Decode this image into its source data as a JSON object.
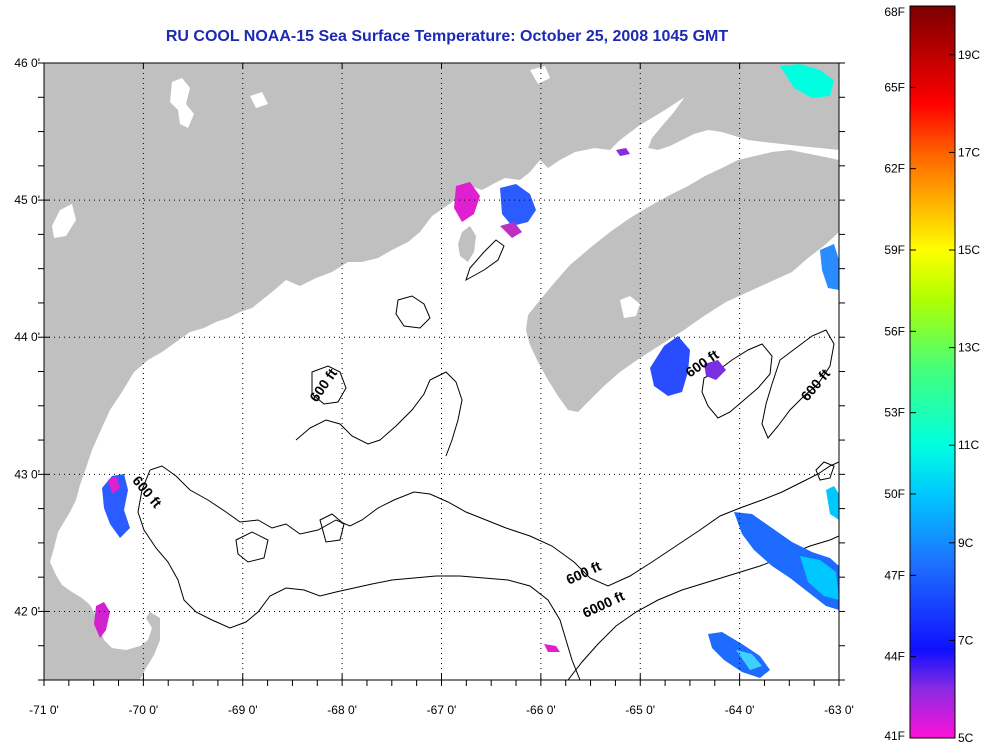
{
  "title": "RU COOL  NOAA-15  Sea Surface Temperature:  October 25, 2008 1045 GMT",
  "map": {
    "lon_range": [
      -71,
      -63
    ],
    "lat_range": [
      41.5,
      46
    ],
    "x_ticks": [
      {
        "value": -71,
        "label": "-71 0'"
      },
      {
        "value": -70,
        "label": "-70 0'"
      },
      {
        "value": -69,
        "label": "-69 0'"
      },
      {
        "value": -68,
        "label": "-68 0'"
      },
      {
        "value": -67,
        "label": "-67 0'"
      },
      {
        "value": -66,
        "label": "-66 0'"
      },
      {
        "value": -65,
        "label": "-65 0'"
      },
      {
        "value": -64,
        "label": "-64 0'"
      },
      {
        "value": -63,
        "label": "-63 0'"
      }
    ],
    "y_ticks": [
      {
        "value": 46,
        "label": "46 0'"
      },
      {
        "value": 45,
        "label": "45 0'"
      },
      {
        "value": 44,
        "label": "44 0'"
      },
      {
        "value": 43,
        "label": "43 0'"
      },
      {
        "value": 42,
        "label": "42 0'"
      }
    ],
    "contour_labels": [
      {
        "text": "600 ft",
        "lon": -68.15,
        "lat": 43.63,
        "angle": -55
      },
      {
        "text": "600 ft",
        "lon": -70.0,
        "lat": 42.85,
        "angle": 50
      },
      {
        "text": "600 ft",
        "lon": -64.35,
        "lat": 43.78,
        "angle": -35
      },
      {
        "text": "600 ft",
        "lon": -63.2,
        "lat": 43.63,
        "angle": -50
      },
      {
        "text": "600 ft",
        "lon": -65.55,
        "lat": 42.25,
        "angle": -25
      },
      {
        "text": "6000 ft",
        "lon": -65.35,
        "lat": 42.02,
        "angle": -25
      }
    ],
    "colors": {
      "land": "#c0c0c0",
      "water": "#ffffff",
      "contour": "#000000",
      "title": "#1c2ab4"
    }
  },
  "colorbar": {
    "fahrenheit_labels": [
      "68F",
      "65F",
      "62F",
      "59F",
      "56F",
      "53F",
      "50F",
      "47F",
      "44F",
      "41F"
    ],
    "celsius_labels": [
      "19C",
      "17C",
      "15C",
      "13C",
      "11C",
      "9C",
      "7C",
      "5C"
    ],
    "temp_range_c": [
      5,
      20
    ],
    "gradient_stops": [
      {
        "c": 5,
        "color": "#ff10d8"
      },
      {
        "c": 6,
        "color": "#8a2be2"
      },
      {
        "c": 6.8,
        "color": "#1010ff"
      },
      {
        "c": 8.5,
        "color": "#1e6cff"
      },
      {
        "c": 10,
        "color": "#00c8ff"
      },
      {
        "c": 11,
        "color": "#00ffe0"
      },
      {
        "c": 12.5,
        "color": "#40ff80"
      },
      {
        "c": 14,
        "color": "#b0ff00"
      },
      {
        "c": 15,
        "color": "#ffff00"
      },
      {
        "c": 16,
        "color": "#ffb000"
      },
      {
        "c": 17,
        "color": "#ff6000"
      },
      {
        "c": 18,
        "color": "#ff0000"
      },
      {
        "c": 20,
        "color": "#7a0000"
      }
    ]
  }
}
